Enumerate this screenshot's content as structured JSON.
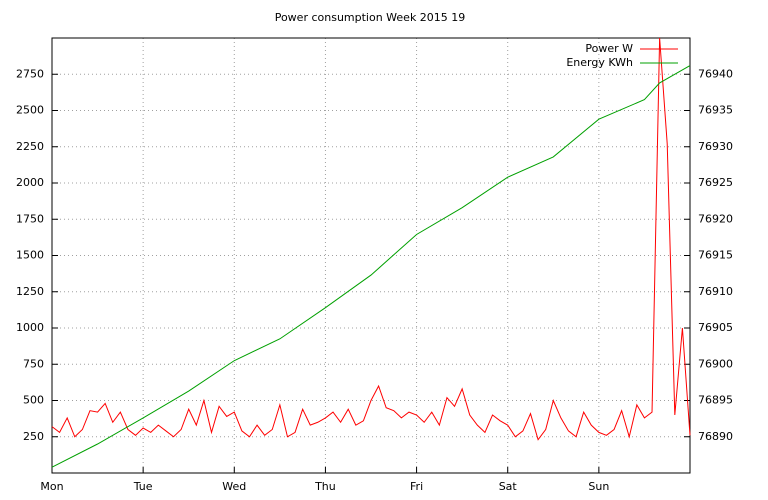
{
  "chart_data": {
    "type": "line",
    "title": "Power consumption Week 2015 19",
    "xlim": [
      0,
      168
    ],
    "xticks": [
      {
        "value": 0,
        "label": "Mon"
      },
      {
        "value": 24,
        "label": "Tue"
      },
      {
        "value": 48,
        "label": "Wed"
      },
      {
        "value": 72,
        "label": "Thu"
      },
      {
        "value": 96,
        "label": "Fri"
      },
      {
        "value": 120,
        "label": "Sat"
      },
      {
        "value": 144,
        "label": "Sun"
      }
    ],
    "ylim": [
      0,
      3000
    ],
    "yticks": [
      250,
      500,
      750,
      1000,
      1250,
      1500,
      1750,
      2000,
      2250,
      2500,
      2750
    ],
    "y2lim": [
      76885,
      76945
    ],
    "y2ticks": [
      76890,
      76895,
      76900,
      76905,
      76910,
      76915,
      76920,
      76925,
      76930,
      76935,
      76940
    ],
    "grid": true,
    "legend": "top-right",
    "series": [
      {
        "name": "Power W",
        "color": "#ff0000",
        "axis": "y",
        "x": [
          0,
          2,
          4,
          6,
          8,
          10,
          12,
          14,
          16,
          18,
          20,
          22,
          24,
          26,
          28,
          30,
          32,
          34,
          36,
          38,
          40,
          42,
          44,
          46,
          48,
          50,
          52,
          54,
          56,
          58,
          60,
          62,
          64,
          66,
          68,
          70,
          72,
          74,
          76,
          78,
          80,
          82,
          84,
          86,
          88,
          90,
          92,
          94,
          96,
          98,
          100,
          102,
          104,
          106,
          108,
          110,
          112,
          114,
          116,
          118,
          120,
          122,
          124,
          126,
          128,
          130,
          132,
          134,
          136,
          138,
          140,
          142,
          144,
          146,
          148,
          150,
          152,
          154,
          156,
          158,
          160,
          162,
          164,
          166,
          168
        ],
        "values": [
          320,
          280,
          380,
          250,
          300,
          430,
          420,
          480,
          350,
          420,
          300,
          260,
          310,
          280,
          330,
          290,
          250,
          300,
          440,
          330,
          500,
          280,
          460,
          390,
          420,
          290,
          250,
          330,
          260,
          300,
          470,
          250,
          280,
          440,
          330,
          350,
          380,
          420,
          350,
          440,
          330,
          360,
          500,
          600,
          450,
          430,
          380,
          420,
          400,
          350,
          420,
          330,
          520,
          460,
          580,
          400,
          330,
          280,
          400,
          360,
          330,
          250,
          290,
          410,
          230,
          300,
          500,
          380,
          290,
          250,
          420,
          330,
          280,
          260,
          300,
          430,
          250,
          470,
          380,
          420,
          3000,
          2270,
          400,
          1000,
          260
        ]
      },
      {
        "name": "Energy KWh",
        "color": "#00a000",
        "axis": "y2",
        "x": [
          0,
          12,
          24,
          36,
          48,
          60,
          72,
          84,
          96,
          108,
          120,
          132,
          144,
          156,
          160,
          168
        ],
        "values": [
          76885.8,
          76889.0,
          76892.6,
          76896.3,
          76900.5,
          76903.5,
          76907.8,
          76912.3,
          76917.9,
          76921.6,
          76925.8,
          76928.6,
          76933.8,
          76936.5,
          76938.8,
          76941.2
        ]
      }
    ]
  }
}
